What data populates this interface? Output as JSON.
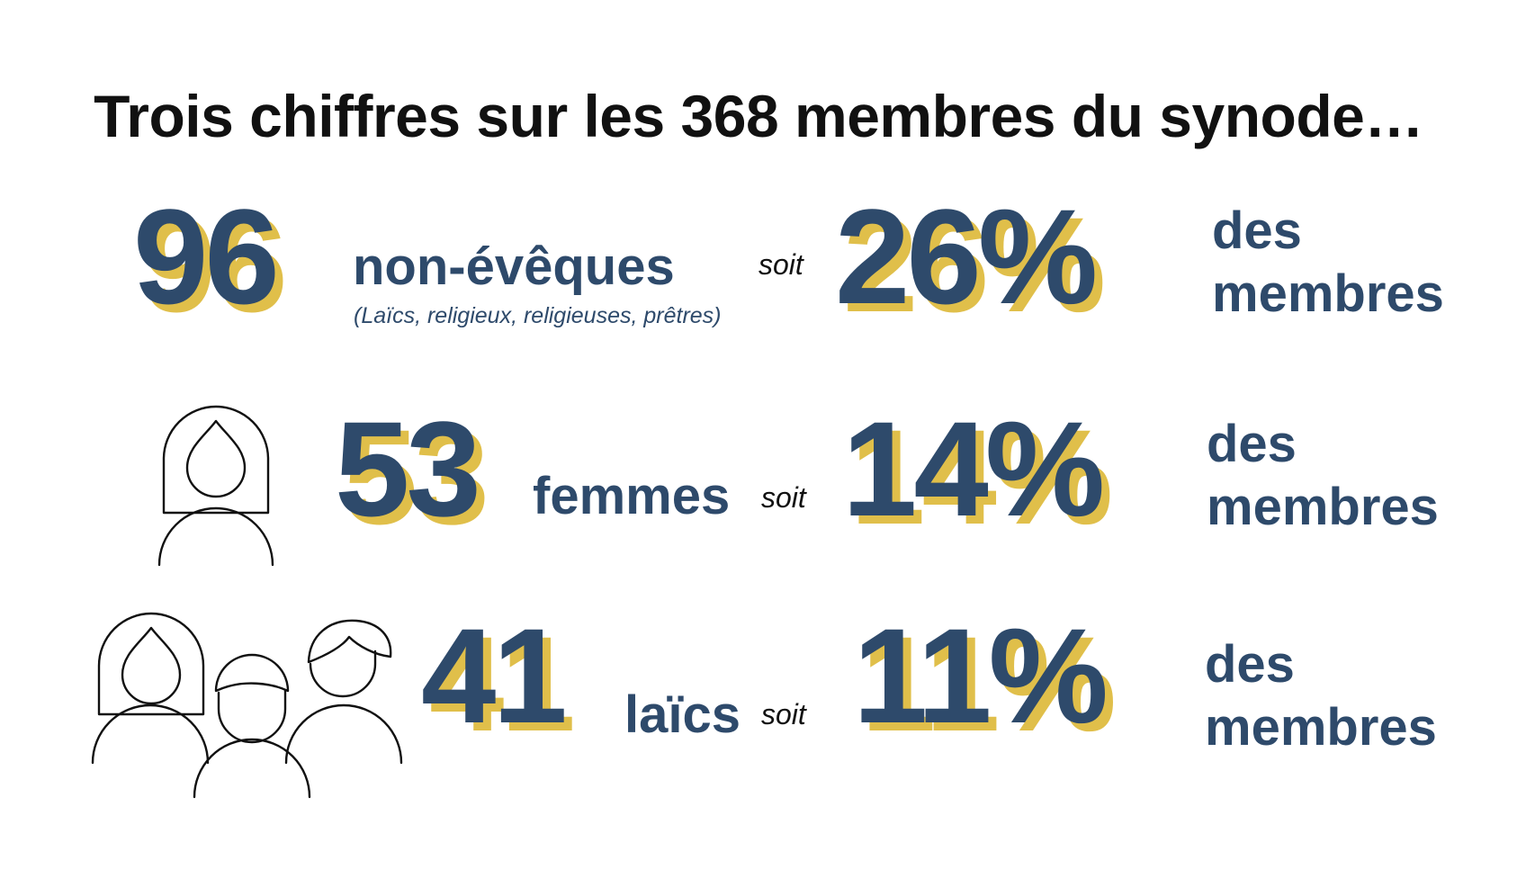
{
  "title": "Trois chiffres sur les 368 membres du synode…",
  "colors": {
    "navy": "#2e4a6b",
    "gold": "#e0bf4a",
    "text": "#111111"
  },
  "rows": [
    {
      "number": "96",
      "label": "non-évêques",
      "sublabel": "(Laïcs, religieux, religieuses, prêtres)",
      "connector": "soit",
      "percent": "26%",
      "suffix_line1": "des",
      "suffix_line2": "membres",
      "icon": "none"
    },
    {
      "number": "53",
      "label": "femmes",
      "connector": "soit",
      "percent": "14%",
      "suffix_line1": "des",
      "suffix_line2": "membres",
      "icon": "woman-icon"
    },
    {
      "number": "41",
      "label": "laïcs",
      "connector": "soit",
      "percent": "11%",
      "suffix_line1": "des",
      "suffix_line2": "membres",
      "icon": "lay-people-group-icon"
    }
  ]
}
